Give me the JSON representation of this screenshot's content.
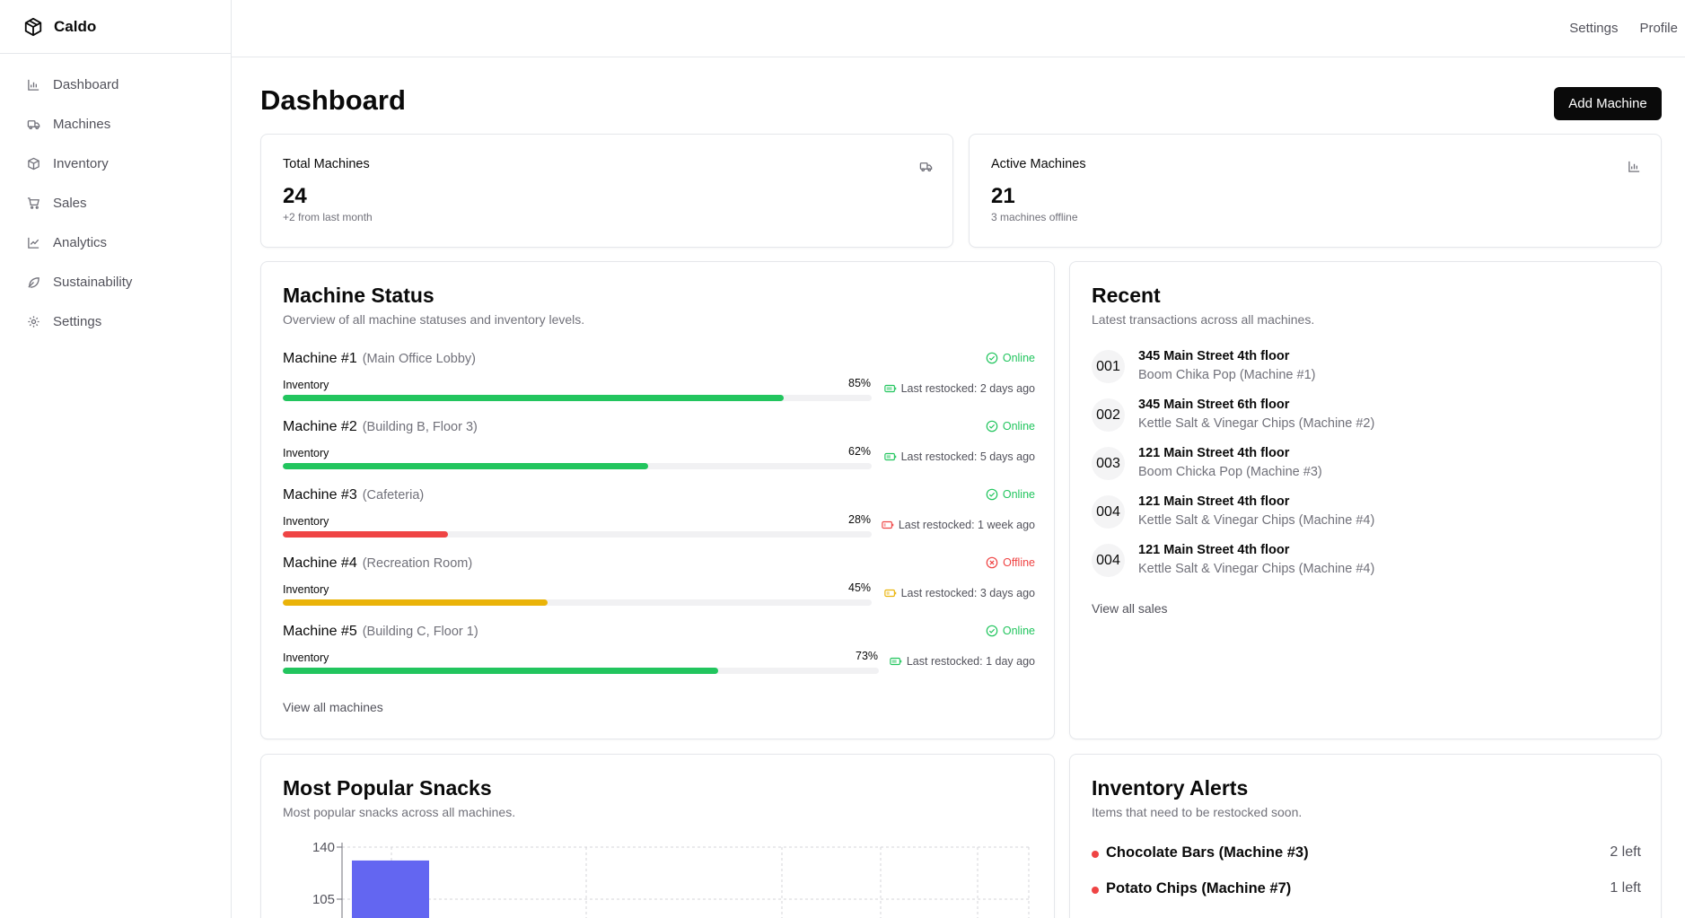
{
  "app": {
    "name": "Caldo"
  },
  "sidebar": {
    "items": [
      {
        "label": "Dashboard",
        "icon": "bar-chart-icon"
      },
      {
        "label": "Machines",
        "icon": "truck-icon"
      },
      {
        "label": "Inventory",
        "icon": "package-icon"
      },
      {
        "label": "Sales",
        "icon": "cart-icon"
      },
      {
        "label": "Analytics",
        "icon": "line-chart-icon"
      },
      {
        "label": "Sustainability",
        "icon": "leaf-icon"
      },
      {
        "label": "Settings",
        "icon": "gear-icon"
      }
    ]
  },
  "topbar": {
    "settings": "Settings",
    "profile": "Profile"
  },
  "page": {
    "title": "Dashboard",
    "add_button": "Add Machine"
  },
  "stats": {
    "total": {
      "title": "Total Machines",
      "value": "24",
      "sub": "+2 from last month"
    },
    "active": {
      "title": "Active Machines",
      "value": "21",
      "sub": "3 machines offline"
    }
  },
  "machine_status": {
    "title": "Machine Status",
    "subtitle": "Overview of all machine statuses and inventory levels.",
    "inventory_label": "Inventory",
    "view_all": "View all machines",
    "machines": [
      {
        "name": "Machine #1",
        "location": "(Main Office Lobby)",
        "status": "Online",
        "inventory_pct": "85%",
        "inventory": 0.85,
        "color": "#22c55e",
        "restocked": "Last restocked: 2 days ago"
      },
      {
        "name": "Machine #2",
        "location": "(Building B, Floor 3)",
        "status": "Online",
        "inventory_pct": "62%",
        "inventory": 0.62,
        "color": "#22c55e",
        "restocked": "Last restocked: 5 days ago"
      },
      {
        "name": "Machine #3",
        "location": "(Cafeteria)",
        "status": "Online",
        "inventory_pct": "28%",
        "inventory": 0.28,
        "color": "#ef4444",
        "restocked": "Last restocked: 1 week ago"
      },
      {
        "name": "Machine #4",
        "location": "(Recreation Room)",
        "status": "Offline",
        "inventory_pct": "45%",
        "inventory": 0.45,
        "color": "#eab308",
        "restocked": "Last restocked: 3 days ago"
      },
      {
        "name": "Machine #5",
        "location": "(Building C, Floor 1)",
        "status": "Online",
        "inventory_pct": "73%",
        "inventory": 0.73,
        "color": "#22c55e",
        "restocked": "Last restocked: 1 day ago"
      }
    ]
  },
  "recent": {
    "title": "Recent",
    "subtitle": "Latest transactions across all machines.",
    "view_all": "View all sales",
    "items": [
      {
        "id": "001",
        "address": "345 Main Street 4th floor",
        "product": "Boom Chika Pop (Machine #1)"
      },
      {
        "id": "002",
        "address": "345 Main Street 6th floor",
        "product": "Kettle Salt & Vinegar Chips (Machine #2)"
      },
      {
        "id": "003",
        "address": "121 Main Street 4th floor",
        "product": "Boom Chicka Pop (Machine #3)"
      },
      {
        "id": "004",
        "address": "121 Main Street 4th floor",
        "product": "Kettle Salt & Vinegar Chips (Machine #4)"
      },
      {
        "id": "004",
        "address": "121 Main Street 4th floor",
        "product": "Kettle Salt & Vinegar Chips (Machine #4)"
      }
    ]
  },
  "popular": {
    "title": "Most Popular Snacks",
    "subtitle": "Most popular snacks across all machines."
  },
  "alerts": {
    "title": "Inventory Alerts",
    "subtitle": "Items that need to be restocked soon.",
    "items": [
      {
        "name": "Chocolate Bars (Machine #3)",
        "count": "2 left"
      },
      {
        "name": "Potato Chips (Machine #7)",
        "count": "1 left"
      }
    ]
  },
  "colors": {
    "online": "#22c55e",
    "offline": "#ef4444",
    "low": "#eab308",
    "bar_chart": "#6366f1"
  },
  "chart_data": {
    "type": "bar",
    "title": "Most Popular Snacks",
    "y_ticks_visible": [
      "140",
      "105"
    ],
    "visible_values": [
      {
        "value": 131
      }
    ],
    "ylim": [
      0,
      140
    ],
    "grid": true
  }
}
